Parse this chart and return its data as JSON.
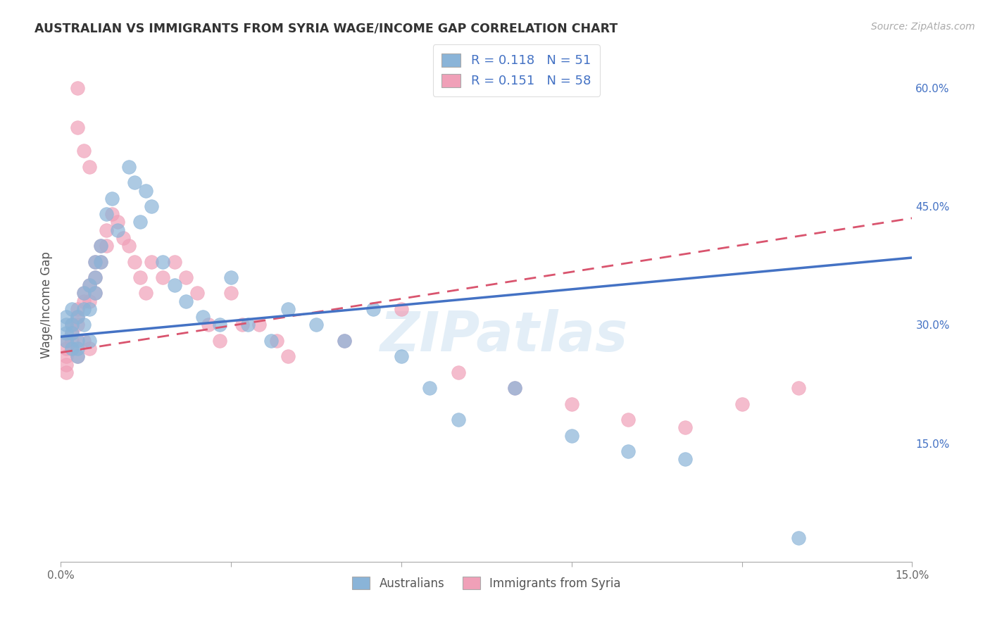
{
  "title": "AUSTRALIAN VS IMMIGRANTS FROM SYRIA WAGE/INCOME GAP CORRELATION CHART",
  "source": "Source: ZipAtlas.com",
  "ylabel": "Wage/Income Gap",
  "xlabel": "",
  "xlim": [
    0.0,
    0.15
  ],
  "ylim": [
    0.0,
    0.65
  ],
  "xticks": [
    0.0,
    0.03,
    0.06,
    0.09,
    0.12,
    0.15
  ],
  "xticklabels": [
    "0.0%",
    "",
    "",
    "",
    "",
    "15.0%"
  ],
  "yticks_right": [
    0.15,
    0.3,
    0.45,
    0.6
  ],
  "ytick_labels_right": [
    "15.0%",
    "30.0%",
    "45.0%",
    "60.0%"
  ],
  "grid_color": "#cccccc",
  "background_color": "#ffffff",
  "blue_color": "#8ab4d8",
  "pink_color": "#f0a0b8",
  "blue_line_color": "#4472c4",
  "pink_line_color": "#d9546e",
  "watermark": "ZIPatlas",
  "legend_R1": "R = 0.118",
  "legend_N1": "N = 51",
  "legend_R2": "R = 0.151",
  "legend_N2": "N = 58",
  "blue_scatter_x": [
    0.001,
    0.001,
    0.001,
    0.001,
    0.002,
    0.002,
    0.002,
    0.002,
    0.003,
    0.003,
    0.003,
    0.003,
    0.004,
    0.004,
    0.004,
    0.005,
    0.005,
    0.005,
    0.006,
    0.006,
    0.006,
    0.007,
    0.007,
    0.008,
    0.009,
    0.01,
    0.012,
    0.013,
    0.014,
    0.015,
    0.016,
    0.018,
    0.02,
    0.022,
    0.025,
    0.028,
    0.03,
    0.033,
    0.037,
    0.04,
    0.045,
    0.05,
    0.055,
    0.06,
    0.065,
    0.07,
    0.08,
    0.09,
    0.1,
    0.11,
    0.13
  ],
  "blue_scatter_y": [
    0.29,
    0.3,
    0.31,
    0.28,
    0.3,
    0.29,
    0.27,
    0.32,
    0.31,
    0.28,
    0.27,
    0.26,
    0.34,
    0.32,
    0.3,
    0.35,
    0.32,
    0.28,
    0.38,
    0.36,
    0.34,
    0.4,
    0.38,
    0.44,
    0.46,
    0.42,
    0.5,
    0.48,
    0.43,
    0.47,
    0.45,
    0.38,
    0.35,
    0.33,
    0.31,
    0.3,
    0.36,
    0.3,
    0.28,
    0.32,
    0.3,
    0.28,
    0.32,
    0.26,
    0.22,
    0.18,
    0.22,
    0.16,
    0.14,
    0.13,
    0.03
  ],
  "pink_scatter_x": [
    0.001,
    0.001,
    0.001,
    0.001,
    0.001,
    0.002,
    0.002,
    0.002,
    0.002,
    0.003,
    0.003,
    0.003,
    0.003,
    0.004,
    0.004,
    0.004,
    0.005,
    0.005,
    0.005,
    0.006,
    0.006,
    0.006,
    0.007,
    0.007,
    0.008,
    0.008,
    0.009,
    0.01,
    0.011,
    0.012,
    0.013,
    0.014,
    0.015,
    0.016,
    0.018,
    0.02,
    0.022,
    0.024,
    0.026,
    0.028,
    0.03,
    0.032,
    0.035,
    0.038,
    0.04,
    0.05,
    0.06,
    0.07,
    0.08,
    0.09,
    0.1,
    0.11,
    0.12,
    0.13,
    0.003,
    0.003,
    0.004,
    0.005
  ],
  "pink_scatter_y": [
    0.28,
    0.27,
    0.26,
    0.25,
    0.24,
    0.3,
    0.29,
    0.28,
    0.27,
    0.32,
    0.31,
    0.3,
    0.26,
    0.34,
    0.33,
    0.28,
    0.35,
    0.33,
    0.27,
    0.38,
    0.36,
    0.34,
    0.4,
    0.38,
    0.42,
    0.4,
    0.44,
    0.43,
    0.41,
    0.4,
    0.38,
    0.36,
    0.34,
    0.38,
    0.36,
    0.38,
    0.36,
    0.34,
    0.3,
    0.28,
    0.34,
    0.3,
    0.3,
    0.28,
    0.26,
    0.28,
    0.32,
    0.24,
    0.22,
    0.2,
    0.18,
    0.17,
    0.2,
    0.22,
    0.6,
    0.55,
    0.52,
    0.5
  ]
}
